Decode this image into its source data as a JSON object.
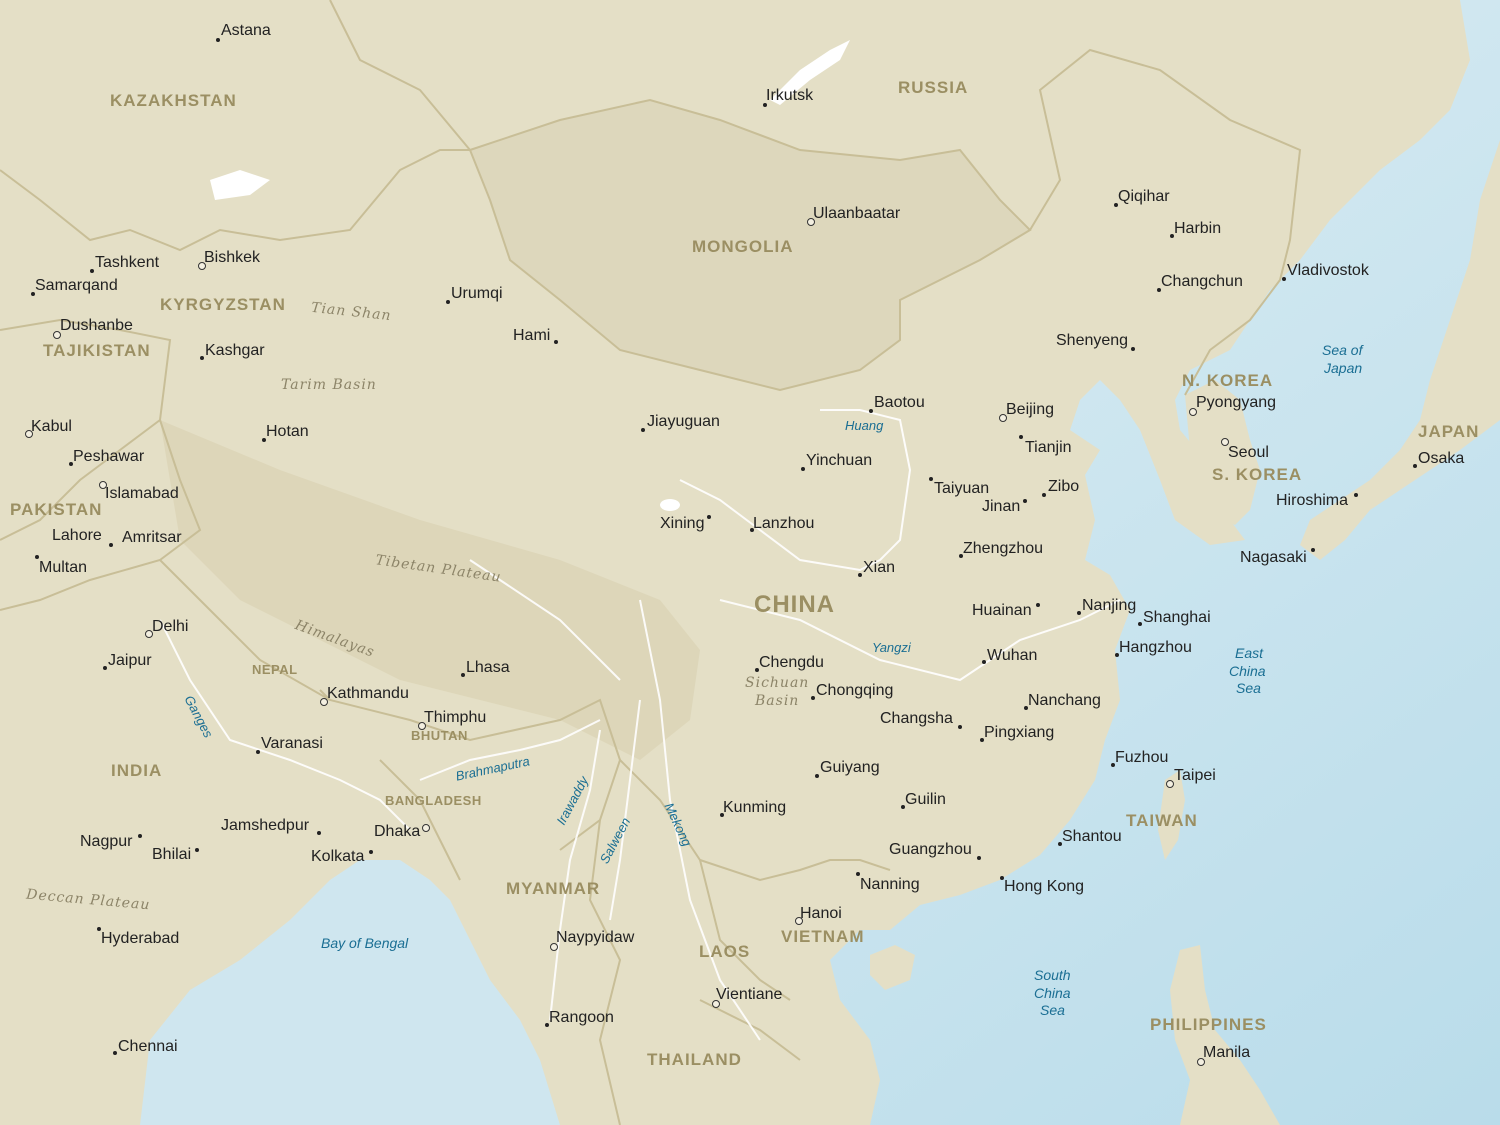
{
  "colors": {
    "land": "#e4dfc6",
    "land_shade": "#d7d0b2",
    "sea": "#cfe6ef",
    "sea_deep": "#b7dbea",
    "river": "#ffffff",
    "border": "#c8be97",
    "country_label": "#9b8f63",
    "water_label": "#1a6e93"
  },
  "countries": {
    "kazakhstan": "KAZAKHSTAN",
    "russia": "RUSSIA",
    "mongolia": "MONGOLIA",
    "kyrgyzstan": "KYRGYZSTAN",
    "tajikistan": "TAJIKISTAN",
    "pakistan": "PAKISTAN",
    "china": "CHINA",
    "nepal": "NEPAL",
    "bhutan": "BHUTAN",
    "india": "INDIA",
    "bangladesh": "BANGLADESH",
    "myanmar": "MYANMAR",
    "laos": "LAOS",
    "vietnam": "VIETNAM",
    "thailand": "THAILAND",
    "n_korea": "N. KOREA",
    "s_korea": "S. KOREA",
    "japan": "JAPAN",
    "taiwan": "TAIWAN",
    "philippines": "PHILIPPINES"
  },
  "cities": {
    "astana": "Astana",
    "irkutsk": "Irkutsk",
    "ulaanbaatar": "Ulaanbaatar",
    "qiqihar": "Qiqihar",
    "harbin": "Harbin",
    "changchun": "Changchun",
    "vladivostok": "Vladivostok",
    "shenyeng": "Shenyeng",
    "tashkent": "Tashkent",
    "bishkek": "Bishkek",
    "samarqand": "Samarqand",
    "urumqi": "Urumqi",
    "dushanbe": "Dushanbe",
    "hami": "Hami",
    "kashgar": "Kashgar",
    "kabul": "Kabul",
    "hotan": "Hotan",
    "jiayuguan": "Jiayuguan",
    "baotou": "Baotou",
    "beijing": "Beijing",
    "pyongyang": "Pyongyang",
    "tianjin": "Tianjin",
    "seoul": "Seoul",
    "osaka": "Osaka",
    "peshawar": "Peshawar",
    "yinchuan": "Yinchuan",
    "islamabad": "Islamabad",
    "taiyuan": "Taiyuan",
    "zibo": "Zibo",
    "jinan": "Jinan",
    "hiroshima": "Hiroshima",
    "xining": "Xining",
    "lanzhou": "Lanzhou",
    "lahore": "Lahore",
    "amritsar": "Amritsar",
    "zhengzhou": "Zhengzhou",
    "nagasaki": "Nagasaki",
    "multan": "Multan",
    "xian": "Xian",
    "nanjing": "Nanjing",
    "huainan": "Huainan",
    "shanghai": "Shanghai",
    "delhi": "Delhi",
    "hangzhou": "Hangzhou",
    "jaipur": "Jaipur",
    "lhasa": "Lhasa",
    "chengdu": "Chengdu",
    "wuhan": "Wuhan",
    "kathmandu": "Kathmandu",
    "chongqing": "Chongqing",
    "nanchang": "Nanchang",
    "thimphu": "Thimphu",
    "changsha": "Changsha",
    "pingxiang": "Pingxiang",
    "varanasi": "Varanasi",
    "fuzhou": "Fuzhou",
    "guiyang": "Guiyang",
    "taipei": "Taipei",
    "guilin": "Guilin",
    "kunming": "Kunming",
    "jamshedpur": "Jamshedpur",
    "dhaka": "Dhaka",
    "nagpur": "Nagpur",
    "shantou": "Shantou",
    "bhilai": "Bhilai",
    "kolkata": "Kolkata",
    "guangzhou": "Guangzhou",
    "nanning": "Nanning",
    "hong_kong": "Hong Kong",
    "hanoi": "Hanoi",
    "hyderabad": "Hyderabad",
    "naypyidaw": "Naypyidaw",
    "vientiane": "Vientiane",
    "rangoon": "Rangoon",
    "chennai": "Chennai",
    "manila": "Manila"
  },
  "regions": {
    "tian_shan": "Tian Shan",
    "tarim_basin": "Tarim Basin",
    "tibetan_plateau": "Tibetan Plateau",
    "himalayas": "Himalayas",
    "sichuan_basin_1": "Sichuan",
    "sichuan_basin_2": "Basin",
    "deccan_plateau": "Deccan Plateau"
  },
  "waters": {
    "sea_of_japan_1": "Sea of",
    "sea_of_japan_2": "Japan",
    "east_china_sea_1": "East",
    "east_china_sea_2": "China",
    "east_china_sea_3": "Sea",
    "south_china_sea_1": "South",
    "south_china_sea_2": "China",
    "south_china_sea_3": "Sea",
    "bay_of_bengal": "Bay of Bengal"
  },
  "rivers": {
    "huang": "Huang",
    "yangzi": "Yangzi",
    "ganges": "Ganges",
    "brahmaputra": "Brahmaputra",
    "irawaddy": "Irawaddy",
    "salween": "Salween",
    "mekong": "Mekong"
  }
}
